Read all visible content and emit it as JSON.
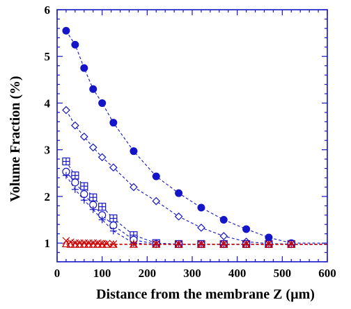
{
  "chart_data": {
    "type": "scatter",
    "xlabel": "Distance from the membrane Z (µm)",
    "ylabel": "Volume Fraction (%)",
    "xlim": [
      0,
      600
    ],
    "ylim": [
      0.6,
      6
    ],
    "xticks": [
      0,
      100,
      200,
      300,
      400,
      500,
      600
    ],
    "yticks": [
      1,
      2,
      3,
      4,
      5,
      6
    ],
    "grid": false,
    "legend": "none",
    "series": [
      {
        "marker": "filled-circle",
        "color": "#1414c8",
        "line": "dashed",
        "x": [
          20,
          40,
          60,
          80,
          100,
          125,
          170,
          220,
          270,
          320,
          370,
          420,
          470,
          520
        ],
        "y": [
          5.55,
          5.25,
          4.75,
          4.3,
          4.0,
          3.58,
          2.97,
          2.43,
          2.07,
          1.76,
          1.5,
          1.3,
          1.12,
          1.0
        ]
      },
      {
        "marker": "open-diamond",
        "color": "#1414c8",
        "line": "dashed",
        "x": [
          20,
          40,
          60,
          80,
          100,
          125,
          170,
          220,
          270,
          320,
          370,
          420,
          470,
          520
        ],
        "y": [
          3.85,
          3.52,
          3.28,
          3.05,
          2.84,
          2.62,
          2.2,
          1.9,
          1.57,
          1.33,
          1.15,
          1.03,
          0.99,
          0.98
        ]
      },
      {
        "marker": "boxed-plus",
        "color": "#1414c8",
        "line": "dashed",
        "x": [
          20,
          40,
          60,
          80,
          100,
          125,
          170,
          220,
          270,
          320,
          370,
          420,
          470,
          520
        ],
        "y": [
          2.75,
          2.45,
          2.22,
          1.98,
          1.78,
          1.53,
          1.17,
          1.0,
          0.98,
          0.98,
          0.98,
          0.98,
          0.98,
          0.98
        ]
      },
      {
        "marker": "open-circle",
        "color": "#1414c8",
        "line": "dashed",
        "x": [
          20,
          40,
          60,
          80,
          100,
          125,
          170,
          220,
          270,
          320,
          370,
          420,
          470,
          520
        ],
        "y": [
          2.53,
          2.3,
          2.05,
          1.82,
          1.6,
          1.38,
          1.07,
          0.98,
          0.98,
          0.98,
          0.98,
          0.98,
          0.98,
          0.98
        ]
      },
      {
        "marker": "plus",
        "color": "#1414c8",
        "line": "dashed",
        "x": [
          20,
          40,
          60,
          80,
          100,
          125,
          170,
          220,
          270,
          320,
          370,
          420,
          470,
          520
        ],
        "y": [
          2.45,
          2.15,
          1.92,
          1.72,
          1.5,
          1.26,
          1.0,
          0.97,
          0.97,
          0.97,
          0.97,
          0.97,
          0.97,
          0.97
        ]
      },
      {
        "marker": "cross",
        "color": "#cc0000",
        "line": "dashed",
        "x": [
          20,
          30,
          40,
          50,
          60,
          70,
          80,
          90,
          100,
          110,
          125,
          170,
          220,
          270,
          320,
          370,
          420,
          470,
          520
        ],
        "y": [
          1.05,
          1.02,
          1.0,
          1.0,
          1.0,
          1.0,
          1.0,
          1.0,
          0.99,
          0.99,
          0.98,
          0.98,
          0.98,
          0.98,
          0.98,
          0.98,
          0.98,
          0.98,
          0.98
        ]
      },
      {
        "marker": "triangle",
        "color": "#cc0000",
        "line": "dashed",
        "x": [
          20,
          30,
          40,
          50,
          60,
          70,
          80,
          90,
          100,
          110,
          125,
          170,
          220,
          270,
          320,
          370,
          420,
          470,
          520
        ],
        "y": [
          0.98,
          0.97,
          0.97,
          0.97,
          0.97,
          0.97,
          0.97,
          0.97,
          0.97,
          0.97,
          0.97,
          0.97,
          0.97,
          0.97,
          0.97,
          0.97,
          0.97,
          0.97,
          0.97
        ]
      }
    ]
  }
}
